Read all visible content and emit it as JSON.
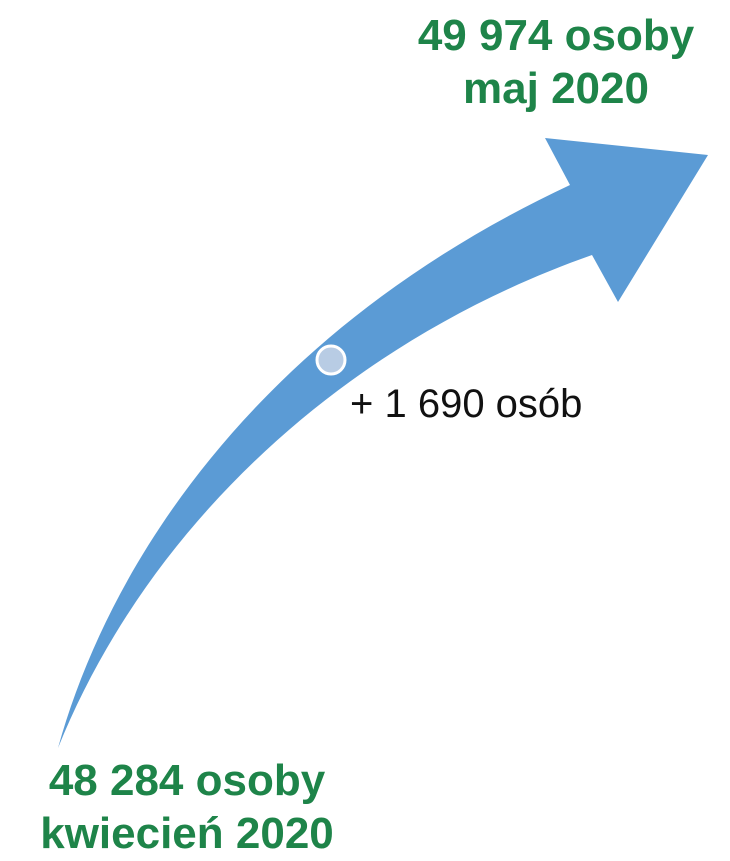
{
  "end": {
    "value": "49 974 osoby",
    "period": "maj 2020"
  },
  "start": {
    "value": "48 284 osoby",
    "period": "kwiecień 2020"
  },
  "change": {
    "label": "+ 1 690 osób"
  },
  "colors": {
    "arrow": "#5b9bd5",
    "label_text": "#1e8449",
    "marker_fill": "#b8cce4",
    "marker_stroke": "#ffffff"
  }
}
